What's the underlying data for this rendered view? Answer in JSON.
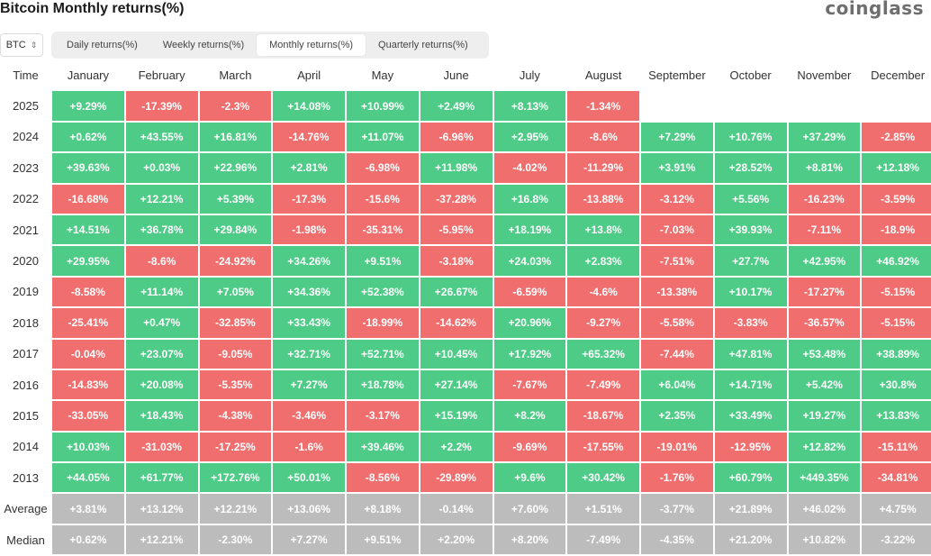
{
  "title": "Bitcoin Monthly returns(%)",
  "brand": "coinglass",
  "asset_select": {
    "value": "BTC"
  },
  "tabs": [
    {
      "label": "Daily returns(%)",
      "active": false
    },
    {
      "label": "Weekly returns(%)",
      "active": false
    },
    {
      "label": "Monthly returns(%)",
      "active": true
    },
    {
      "label": "Quarterly returns(%)",
      "active": false
    }
  ],
  "colors": {
    "positive": "#4ecb86",
    "negative": "#f06e6e",
    "summary": "#bcbcbc"
  },
  "chart_data": {
    "type": "table",
    "corner_label": "Time",
    "columns": [
      "January",
      "February",
      "March",
      "April",
      "May",
      "June",
      "July",
      "August",
      "September",
      "October",
      "November",
      "December"
    ],
    "rows": [
      {
        "label": "2025",
        "values": [
          "+9.29%",
          "-17.39%",
          "-2.3%",
          "+14.08%",
          "+10.99%",
          "+2.49%",
          "+8.13%",
          "-1.34%",
          "",
          "",
          "",
          ""
        ]
      },
      {
        "label": "2024",
        "values": [
          "+0.62%",
          "+43.55%",
          "+16.81%",
          "-14.76%",
          "+11.07%",
          "-6.96%",
          "+2.95%",
          "-8.6%",
          "+7.29%",
          "+10.76%",
          "+37.29%",
          "-2.85%"
        ]
      },
      {
        "label": "2023",
        "values": [
          "+39.63%",
          "+0.03%",
          "+22.96%",
          "+2.81%",
          "-6.98%",
          "+11.98%",
          "-4.02%",
          "-11.29%",
          "+3.91%",
          "+28.52%",
          "+8.81%",
          "+12.18%"
        ]
      },
      {
        "label": "2022",
        "values": [
          "-16.68%",
          "+12.21%",
          "+5.39%",
          "-17.3%",
          "-15.6%",
          "-37.28%",
          "+16.8%",
          "-13.88%",
          "-3.12%",
          "+5.56%",
          "-16.23%",
          "-3.59%"
        ]
      },
      {
        "label": "2021",
        "values": [
          "+14.51%",
          "+36.78%",
          "+29.84%",
          "-1.98%",
          "-35.31%",
          "-5.95%",
          "+18.19%",
          "+13.8%",
          "-7.03%",
          "+39.93%",
          "-7.11%",
          "-18.9%"
        ]
      },
      {
        "label": "2020",
        "values": [
          "+29.95%",
          "-8.6%",
          "-24.92%",
          "+34.26%",
          "+9.51%",
          "-3.18%",
          "+24.03%",
          "+2.83%",
          "-7.51%",
          "+27.7%",
          "+42.95%",
          "+46.92%"
        ]
      },
      {
        "label": "2019",
        "values": [
          "-8.58%",
          "+11.14%",
          "+7.05%",
          "+34.36%",
          "+52.38%",
          "+26.67%",
          "-6.59%",
          "-4.6%",
          "-13.38%",
          "+10.17%",
          "-17.27%",
          "-5.15%"
        ]
      },
      {
        "label": "2018",
        "values": [
          "-25.41%",
          "+0.47%",
          "-32.85%",
          "+33.43%",
          "-18.99%",
          "-14.62%",
          "+20.96%",
          "-9.27%",
          "-5.58%",
          "-3.83%",
          "-36.57%",
          "-5.15%"
        ]
      },
      {
        "label": "2017",
        "values": [
          "-0.04%",
          "+23.07%",
          "-9.05%",
          "+32.71%",
          "+52.71%",
          "+10.45%",
          "+17.92%",
          "+65.32%",
          "-7.44%",
          "+47.81%",
          "+53.48%",
          "+38.89%"
        ]
      },
      {
        "label": "2016",
        "values": [
          "-14.83%",
          "+20.08%",
          "-5.35%",
          "+7.27%",
          "+18.78%",
          "+27.14%",
          "-7.67%",
          "-7.49%",
          "+6.04%",
          "+14.71%",
          "+5.42%",
          "+30.8%"
        ]
      },
      {
        "label": "2015",
        "values": [
          "-33.05%",
          "+18.43%",
          "-4.38%",
          "-3.46%",
          "-3.17%",
          "+15.19%",
          "+8.2%",
          "-18.67%",
          "+2.35%",
          "+33.49%",
          "+19.27%",
          "+13.83%"
        ]
      },
      {
        "label": "2014",
        "values": [
          "+10.03%",
          "-31.03%",
          "-17.25%",
          "-1.6%",
          "+39.46%",
          "+2.2%",
          "-9.69%",
          "-17.55%",
          "-19.01%",
          "-12.95%",
          "+12.82%",
          "-15.11%"
        ]
      },
      {
        "label": "2013",
        "values": [
          "+44.05%",
          "+61.77%",
          "+172.76%",
          "+50.01%",
          "-8.56%",
          "-29.89%",
          "+9.6%",
          "+30.42%",
          "-1.76%",
          "+60.79%",
          "+449.35%",
          "-34.81%"
        ]
      }
    ],
    "summary_rows": [
      {
        "label": "Average",
        "values": [
          "+3.81%",
          "+13.12%",
          "+12.21%",
          "+13.06%",
          "+8.18%",
          "-0.14%",
          "+7.60%",
          "+1.51%",
          "-3.77%",
          "+21.89%",
          "+46.02%",
          "+4.75%"
        ]
      },
      {
        "label": "Median",
        "values": [
          "+0.62%",
          "+12.21%",
          "-2.30%",
          "+7.27%",
          "+9.51%",
          "+2.20%",
          "+8.20%",
          "-7.49%",
          "-4.35%",
          "+21.20%",
          "+10.82%",
          "-3.22%"
        ]
      }
    ]
  }
}
